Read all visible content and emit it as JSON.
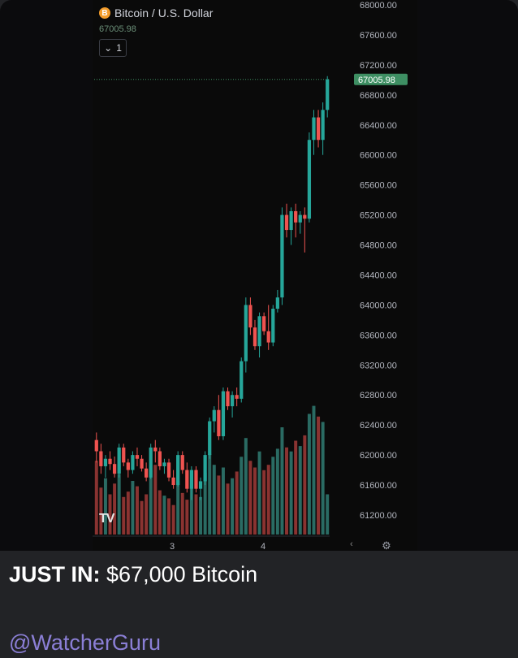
{
  "chart": {
    "symbol": "Bitcoin / U.S. Dollar",
    "coin_glyph": "B",
    "last_price_label": "67005.98",
    "interval": "1",
    "logo": "TV",
    "price_badge": "67005.98",
    "price_ticks": [
      "68000.00",
      "67600.00",
      "67200.00",
      "66800.00",
      "66400.00",
      "66000.00",
      "65600.00",
      "65200.00",
      "64800.00",
      "64400.00",
      "64000.00",
      "63600.00",
      "63200.00",
      "62800.00",
      "62400.00",
      "62000.00",
      "61600.00",
      "61200.00"
    ],
    "time_ticks": [
      "3",
      "4"
    ],
    "colors": {
      "up": "#26a69a",
      "down": "#ef5350",
      "up_vol": "#2a6b63",
      "down_vol": "#8a3331",
      "badge": "#3e8f63"
    }
  },
  "chart_data": {
    "type": "candlestick",
    "title": "Bitcoin / U.S. Dollar",
    "ylim": [
      61000,
      68000
    ],
    "x_ticks": [
      "3",
      "4"
    ],
    "last_price": 67005.98,
    "candles": [
      [
        62200,
        62300,
        61900,
        62050
      ],
      [
        62050,
        62150,
        61750,
        61850
      ],
      [
        61850,
        62000,
        61700,
        61950
      ],
      [
        61950,
        62050,
        61800,
        61880
      ],
      [
        61880,
        61980,
        61700,
        61750
      ],
      [
        61750,
        62150,
        61700,
        62100
      ],
      [
        62100,
        62150,
        61850,
        61900
      ],
      [
        61900,
        61950,
        61700,
        61800
      ],
      [
        61800,
        62050,
        61750,
        62000
      ],
      [
        62000,
        62100,
        61850,
        61950
      ],
      [
        61950,
        62000,
        61780,
        61820
      ],
      [
        61820,
        61900,
        61650,
        61700
      ],
      [
        61700,
        62150,
        61680,
        62100
      ],
      [
        62100,
        62200,
        61900,
        62050
      ],
      [
        62050,
        62100,
        61800,
        61850
      ],
      [
        61850,
        61950,
        61750,
        61900
      ],
      [
        61900,
        61950,
        61650,
        61700
      ],
      [
        61700,
        61800,
        61550,
        61600
      ],
      [
        61600,
        62050,
        61580,
        62000
      ],
      [
        62000,
        62050,
        61750,
        61800
      ],
      [
        61800,
        61900,
        61500,
        61550
      ],
      [
        61550,
        61850,
        61400,
        61800
      ],
      [
        61800,
        61850,
        61500,
        61550
      ],
      [
        61550,
        61700,
        61400,
        61650
      ],
      [
        61650,
        62050,
        61600,
        62000
      ],
      [
        62000,
        62500,
        61950,
        62450
      ],
      [
        62450,
        62650,
        62300,
        62600
      ],
      [
        62600,
        62800,
        62200,
        62250
      ],
      [
        62250,
        62900,
        62200,
        62850
      ],
      [
        62850,
        62900,
        62600,
        62650
      ],
      [
        62650,
        62850,
        62500,
        62800
      ],
      [
        62800,
        62900,
        62650,
        62750
      ],
      [
        62750,
        63300,
        62700,
        63250
      ],
      [
        63250,
        64100,
        63100,
        64000
      ],
      [
        64000,
        64100,
        63600,
        63700
      ],
      [
        63700,
        63800,
        63400,
        63450
      ],
      [
        63450,
        63900,
        63300,
        63850
      ],
      [
        63850,
        63900,
        63600,
        63650
      ],
      [
        63650,
        64000,
        63400,
        63500
      ],
      [
        63500,
        64000,
        63450,
        63950
      ],
      [
        63950,
        64200,
        63900,
        64100
      ],
      [
        64100,
        65300,
        64000,
        65200
      ],
      [
        65200,
        65350,
        64900,
        65000
      ],
      [
        65000,
        65300,
        64800,
        65250
      ],
      [
        65250,
        65350,
        64900,
        65100
      ],
      [
        65100,
        65250,
        64950,
        65200
      ],
      [
        65200,
        65300,
        64700,
        65150
      ],
      [
        65150,
        66300,
        65100,
        66200
      ],
      [
        66200,
        66600,
        66000,
        66500
      ],
      [
        66500,
        66600,
        66100,
        66200
      ],
      [
        66200,
        66700,
        66000,
        66600
      ],
      [
        66600,
        67050,
        66500,
        67005.98
      ]
    ],
    "volumes": [
      0.55,
      0.35,
      0.42,
      0.3,
      0.38,
      0.45,
      0.28,
      0.32,
      0.4,
      0.36,
      0.25,
      0.3,
      0.48,
      0.52,
      0.33,
      0.29,
      0.27,
      0.22,
      0.4,
      0.31,
      0.26,
      0.35,
      0.3,
      0.28,
      0.46,
      0.6,
      0.52,
      0.44,
      0.5,
      0.38,
      0.42,
      0.47,
      0.58,
      0.72,
      0.55,
      0.5,
      0.62,
      0.48,
      0.52,
      0.58,
      0.64,
      0.8,
      0.65,
      0.62,
      0.7,
      0.66,
      0.74,
      0.9,
      0.96,
      0.88,
      0.84,
      0.3
    ]
  },
  "post": {
    "caption_bold": "JUST IN:",
    "caption_rest": " $67,000 Bitcoin",
    "handle": "@WatcherGuru"
  }
}
